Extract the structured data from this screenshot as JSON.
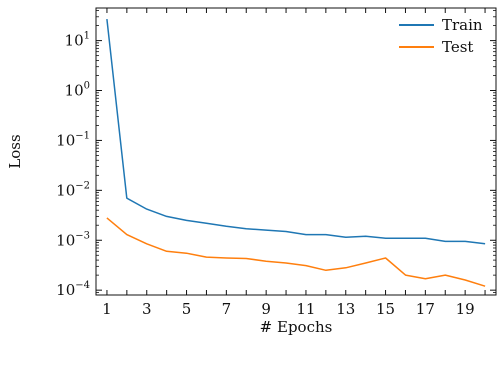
{
  "chart_data": {
    "type": "line",
    "title": "",
    "xlabel": "# Epochs",
    "ylabel": "Loss",
    "yscale": "log",
    "xlim": [
      0.45,
      20.55
    ],
    "ylim": [
      8e-05,
      45
    ],
    "grid": false,
    "legend_position": "top-right",
    "x": [
      1,
      2,
      3,
      4,
      5,
      6,
      7,
      8,
      9,
      10,
      11,
      12,
      13,
      14,
      15,
      16,
      17,
      18,
      19,
      20
    ],
    "x_ticks": [
      1,
      3,
      5,
      7,
      9,
      11,
      13,
      15,
      17,
      19
    ],
    "y_ticks": [
      {
        "value": 0.0001,
        "base": "10",
        "exponent": "−4"
      },
      {
        "value": 0.001,
        "base": "10",
        "exponent": "−3"
      },
      {
        "value": 0.01,
        "base": "10",
        "exponent": "−2"
      },
      {
        "value": 0.1,
        "base": "10",
        "exponent": "−1"
      },
      {
        "value": 1,
        "base": "10",
        "exponent": "0"
      },
      {
        "value": 10,
        "base": "10",
        "exponent": "1"
      }
    ],
    "series": [
      {
        "name": "Train",
        "color": "#1f77b4",
        "values": [
          27,
          0.007,
          0.0042,
          0.003,
          0.0025,
          0.0022,
          0.0019,
          0.0017,
          0.0016,
          0.0015,
          0.0013,
          0.0013,
          0.00115,
          0.0012,
          0.0011,
          0.0011,
          0.0011,
          0.00095,
          0.00095,
          0.00085
        ]
      },
      {
        "name": "Test",
        "color": "#ff7f0e",
        "values": [
          0.0028,
          0.0013,
          0.00085,
          0.0006,
          0.00055,
          0.00046,
          0.00044,
          0.00043,
          0.00038,
          0.00035,
          0.00031,
          0.00025,
          0.00028,
          0.00035,
          0.00044,
          0.0002,
          0.00017,
          0.0002,
          0.00016,
          0.00012
        ]
      }
    ]
  }
}
